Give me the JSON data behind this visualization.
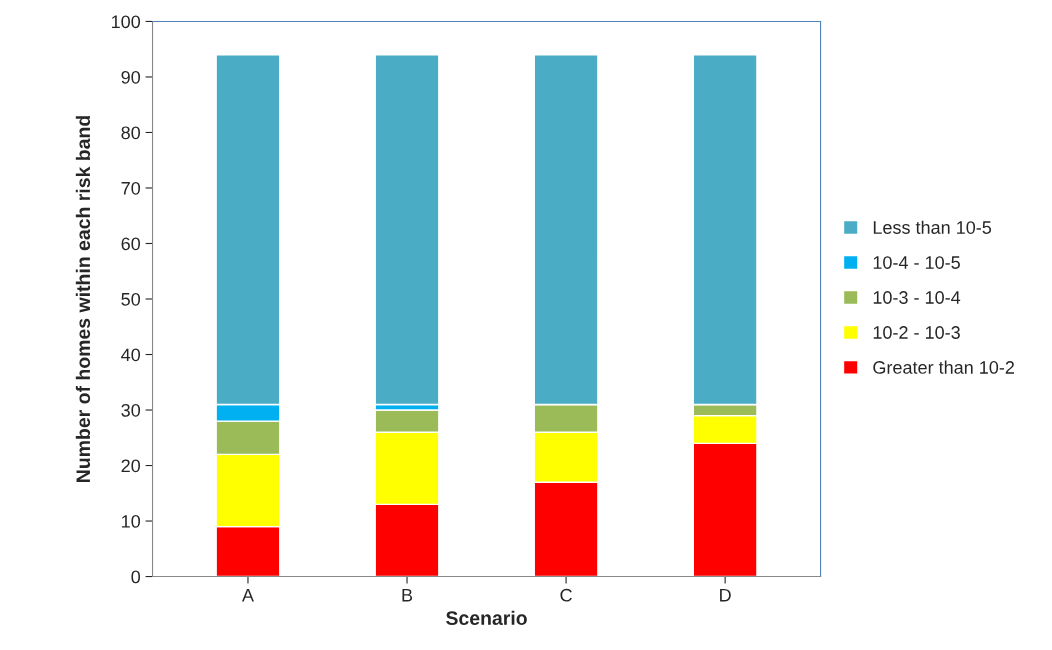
{
  "chart_data": {
    "type": "bar",
    "xlabel": "Scenario",
    "ylabel": "Number of homes within each risk band",
    "categories": [
      "A",
      "B",
      "C",
      "D"
    ],
    "stacked": true,
    "series": [
      {
        "name": "Greater than 10-2",
        "color": "#ff0000",
        "values": [
          9,
          13,
          17,
          24
        ]
      },
      {
        "name": "10-2 - 10-3",
        "color": "#ffff00",
        "values": [
          13,
          13,
          9,
          5
        ]
      },
      {
        "name": "10-3 - 10-4",
        "color": "#9bbb59",
        "values": [
          6,
          4,
          5,
          2
        ]
      },
      {
        "name": "10-4 - 10-5",
        "color": "#00b0f0",
        "values": [
          3,
          1,
          0,
          0
        ]
      },
      {
        "name": "Less than 10-5",
        "color": "#4bacc6",
        "values": [
          63,
          63,
          63,
          63
        ]
      }
    ],
    "ylim": [
      0,
      100
    ],
    "yticks": [
      0,
      10,
      20,
      30,
      40,
      50,
      60,
      70,
      80,
      90,
      100
    ],
    "grid": false,
    "legend": "right"
  }
}
